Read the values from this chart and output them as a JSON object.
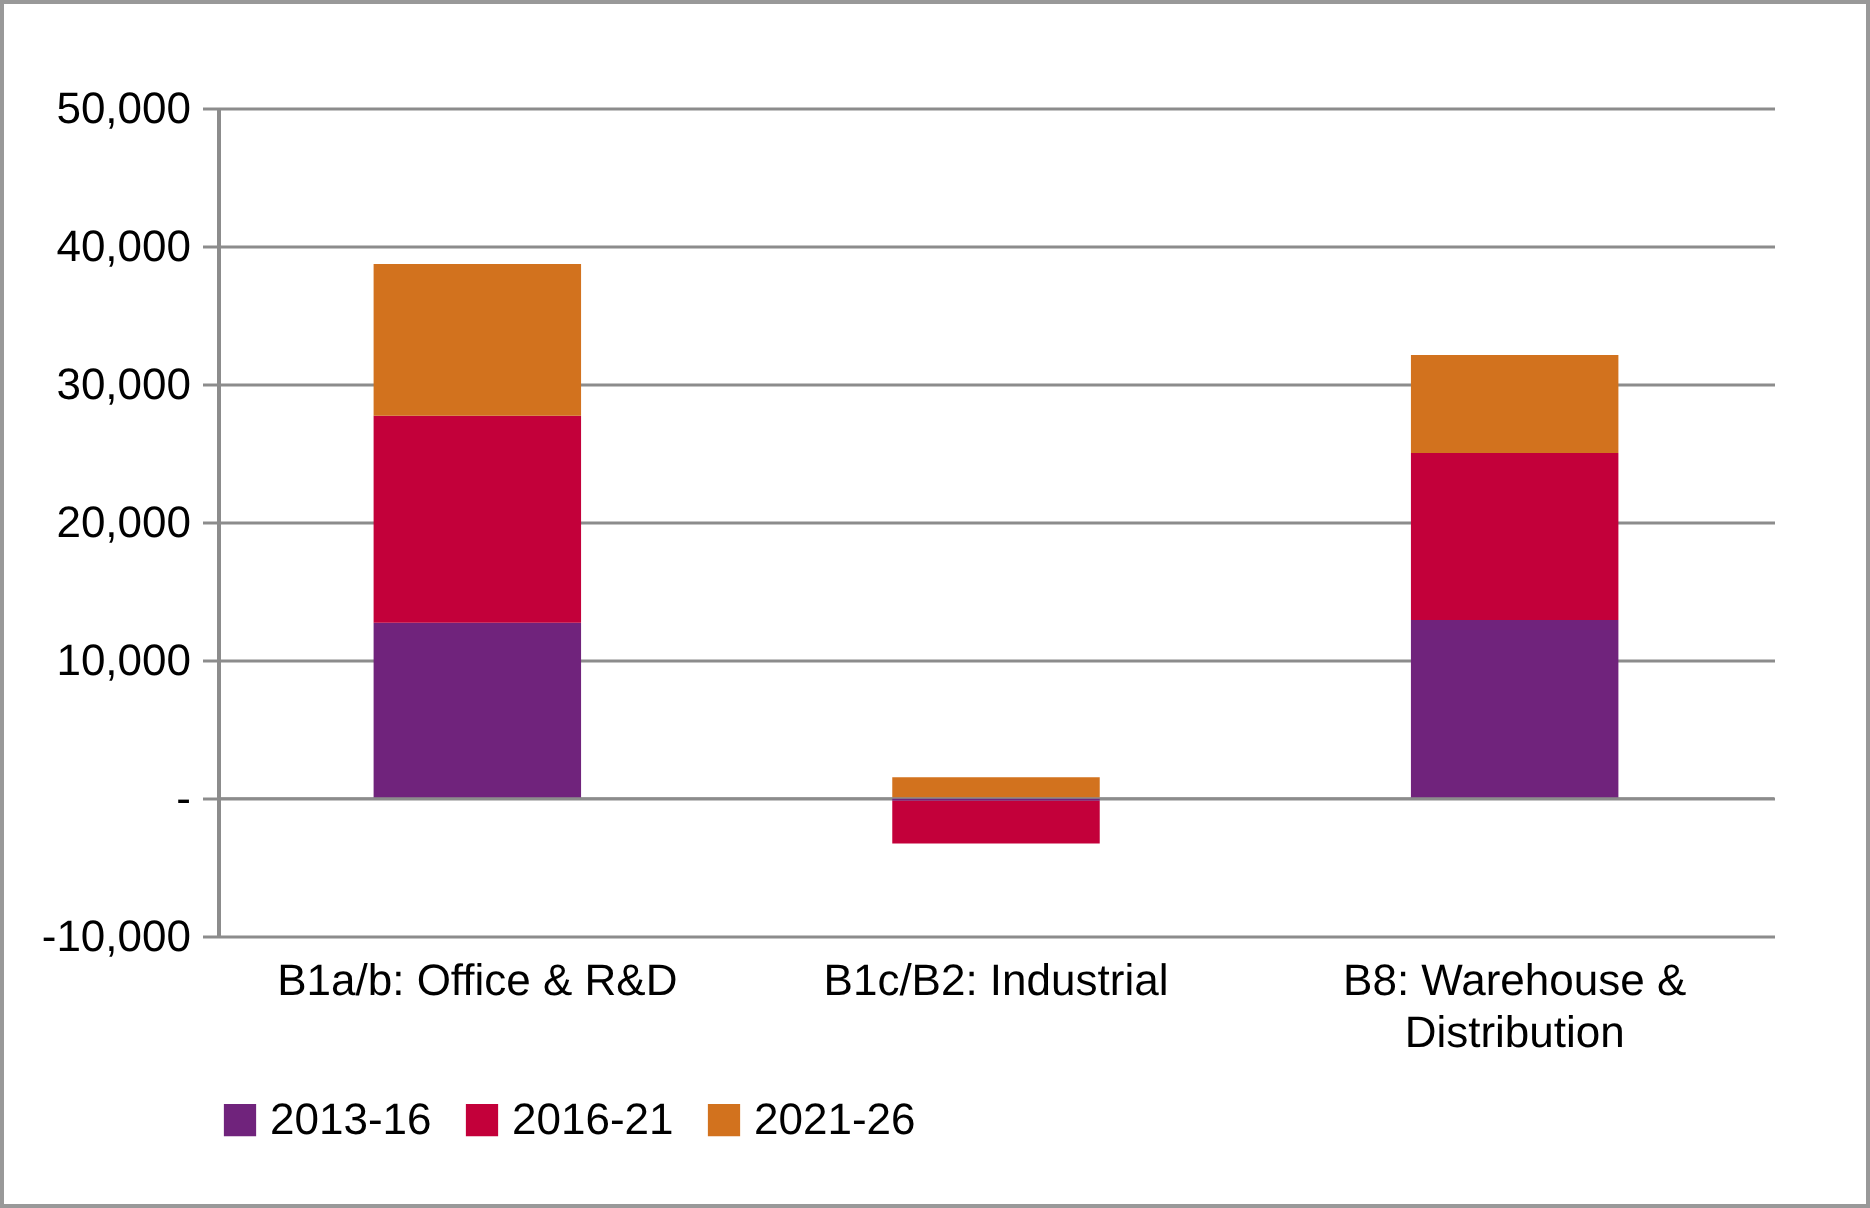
{
  "chart_data": {
    "type": "bar",
    "stacked": true,
    "categories": [
      "B1a/b: Office & R&D",
      "B1c/B2: Industrial",
      "B8: Warehouse & Distribution"
    ],
    "series": [
      {
        "name": "2013-16",
        "color": "#70237c",
        "values": [
          12700,
          -200,
          12900
        ]
      },
      {
        "name": "2016-21",
        "color": "#c3003a",
        "values": [
          15000,
          -3100,
          12100
        ]
      },
      {
        "name": "2021-26",
        "color": "#d2721e",
        "values": [
          11000,
          1500,
          7100
        ]
      }
    ],
    "ylim": [
      -10000,
      50000
    ],
    "yticks": [
      {
        "value": -10000,
        "label": "-10,000"
      },
      {
        "value": 0,
        "label": "-"
      },
      {
        "value": 10000,
        "label": "10,000"
      },
      {
        "value": 20000,
        "label": "20,000"
      },
      {
        "value": 30000,
        "label": "30,000"
      },
      {
        "value": 40000,
        "label": "40,000"
      },
      {
        "value": 50000,
        "label": "50,000"
      }
    ],
    "grid": "y",
    "legend": "bottom"
  }
}
